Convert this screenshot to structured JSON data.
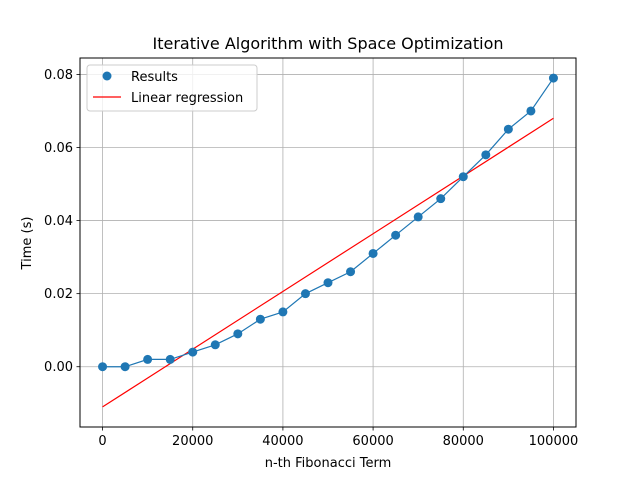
{
  "chart_data": {
    "type": "scatter",
    "title": "Iterative Algorithm with Space Optimization",
    "xlabel": "n-th Fibonacci Term",
    "ylabel": "Time (s)",
    "xlim": [
      -5000,
      105000
    ],
    "ylim": [
      -0.0165,
      0.0845
    ],
    "x_ticks": [
      0,
      20000,
      40000,
      60000,
      80000,
      100000
    ],
    "x_tick_labels": [
      "0",
      "20000",
      "40000",
      "60000",
      "80000",
      "100000"
    ],
    "y_ticks": [
      0.0,
      0.02,
      0.04,
      0.06,
      0.08
    ],
    "y_tick_labels": [
      "0.00",
      "0.02",
      "0.04",
      "0.06",
      "0.08"
    ],
    "grid": true,
    "legend_position": "top-left",
    "series": [
      {
        "name": "Results",
        "kind": "scatter+line",
        "color": "#1f77b4",
        "x": [
          0,
          5000,
          10000,
          15000,
          20000,
          25000,
          30000,
          35000,
          40000,
          45000,
          50000,
          55000,
          60000,
          65000,
          70000,
          75000,
          80000,
          85000,
          90000,
          95000,
          100000
        ],
        "y": [
          0.0,
          0.0,
          0.002,
          0.002,
          0.004,
          0.006,
          0.009,
          0.013,
          0.015,
          0.02,
          0.023,
          0.026,
          0.031,
          0.036,
          0.041,
          0.046,
          0.052,
          0.058,
          0.065,
          0.07,
          0.079
        ]
      },
      {
        "name": "Linear regression",
        "kind": "line",
        "color": "#ff0000",
        "x": [
          0,
          100000
        ],
        "y": [
          -0.011,
          0.068
        ]
      }
    ]
  }
}
